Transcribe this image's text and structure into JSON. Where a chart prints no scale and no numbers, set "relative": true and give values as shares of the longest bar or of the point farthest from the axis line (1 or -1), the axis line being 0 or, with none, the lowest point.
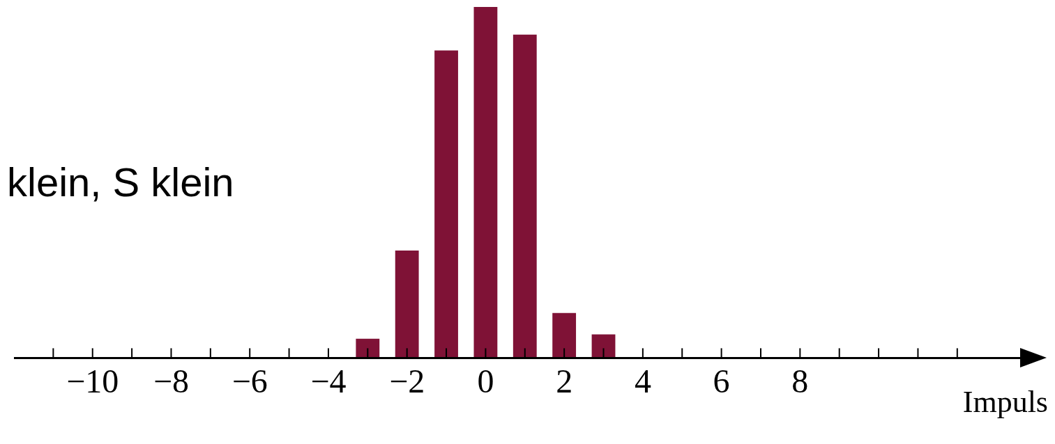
{
  "chart_data": {
    "type": "bar",
    "title": "klein, S klein",
    "xlabel": "Impuls",
    "relative": true,
    "x": [
      -3,
      -2,
      -1,
      0,
      1,
      2,
      3
    ],
    "values": [
      0.055,
      0.306,
      0.876,
      1,
      0.921,
      0.128,
      0.067
    ],
    "color": "#7f1236",
    "xlim": [
      -12,
      13.6
    ],
    "xticks": [
      {
        "value": -11,
        "label": null
      },
      -10,
      {
        "value": -9,
        "label": null
      },
      -8,
      {
        "value": -7,
        "label": null
      },
      -6,
      {
        "value": -5,
        "label": null
      },
      -4,
      {
        "value": -3,
        "label": null
      },
      -2,
      {
        "value": -1,
        "label": null
      },
      0,
      {
        "value": 1,
        "label": null
      },
      2,
      {
        "value": 3,
        "label": null
      },
      4,
      {
        "value": 5,
        "label": null
      },
      6,
      {
        "value": 7,
        "label": null
      },
      8,
      {
        "value": 9,
        "label": null
      },
      {
        "value": 10,
        "label": null
      },
      {
        "value": 11,
        "label": null
      },
      {
        "value": 12,
        "label": null
      }
    ],
    "tick_labels": "x",
    "grid": false,
    "legend": false
  }
}
